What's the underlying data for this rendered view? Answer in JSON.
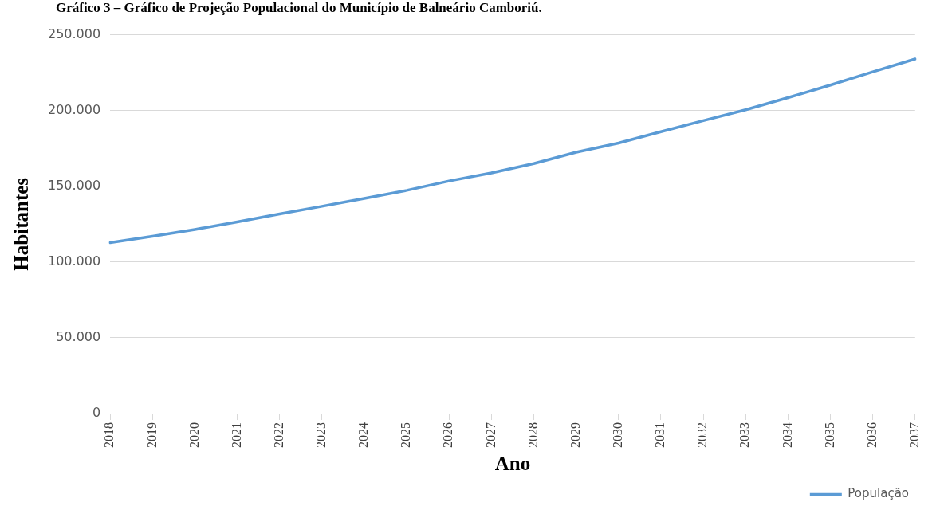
{
  "chart_data": {
    "type": "line",
    "title": "Gráfico 3 – Gráfico de Projeção Populacional do Município de Balneário Camboriú.",
    "xlabel": "Ano",
    "ylabel": "Habitantes",
    "categories": [
      "2018",
      "2019",
      "2020",
      "2021",
      "2022",
      "2023",
      "2024",
      "2025",
      "2026",
      "2027",
      "2028",
      "2029",
      "2030",
      "2031",
      "2032",
      "2033",
      "2034",
      "2035",
      "2036",
      "2037"
    ],
    "series": [
      {
        "name": "População",
        "color": "#5b9bd5",
        "values": [
          112800,
          117000,
          121500,
          126500,
          131700,
          136800,
          142000,
          147300,
          153500,
          158800,
          165000,
          172500,
          178500,
          186000,
          193300,
          200500,
          208500,
          216800,
          225500,
          234000
        ]
      }
    ],
    "ylim": [
      0,
      250000
    ],
    "yticks": [
      0,
      {
        "value": 50000,
        "label": "50.000"
      },
      {
        "value": 100000,
        "label": "100.000"
      },
      {
        "value": 150000,
        "label": "150.000"
      },
      {
        "value": 200000,
        "label": "200.000"
      },
      {
        "value": 250000,
        "label": "250.000"
      }
    ],
    "grid": "y",
    "legend": "bottom right",
    "marker": "none",
    "line_style": "solid"
  }
}
